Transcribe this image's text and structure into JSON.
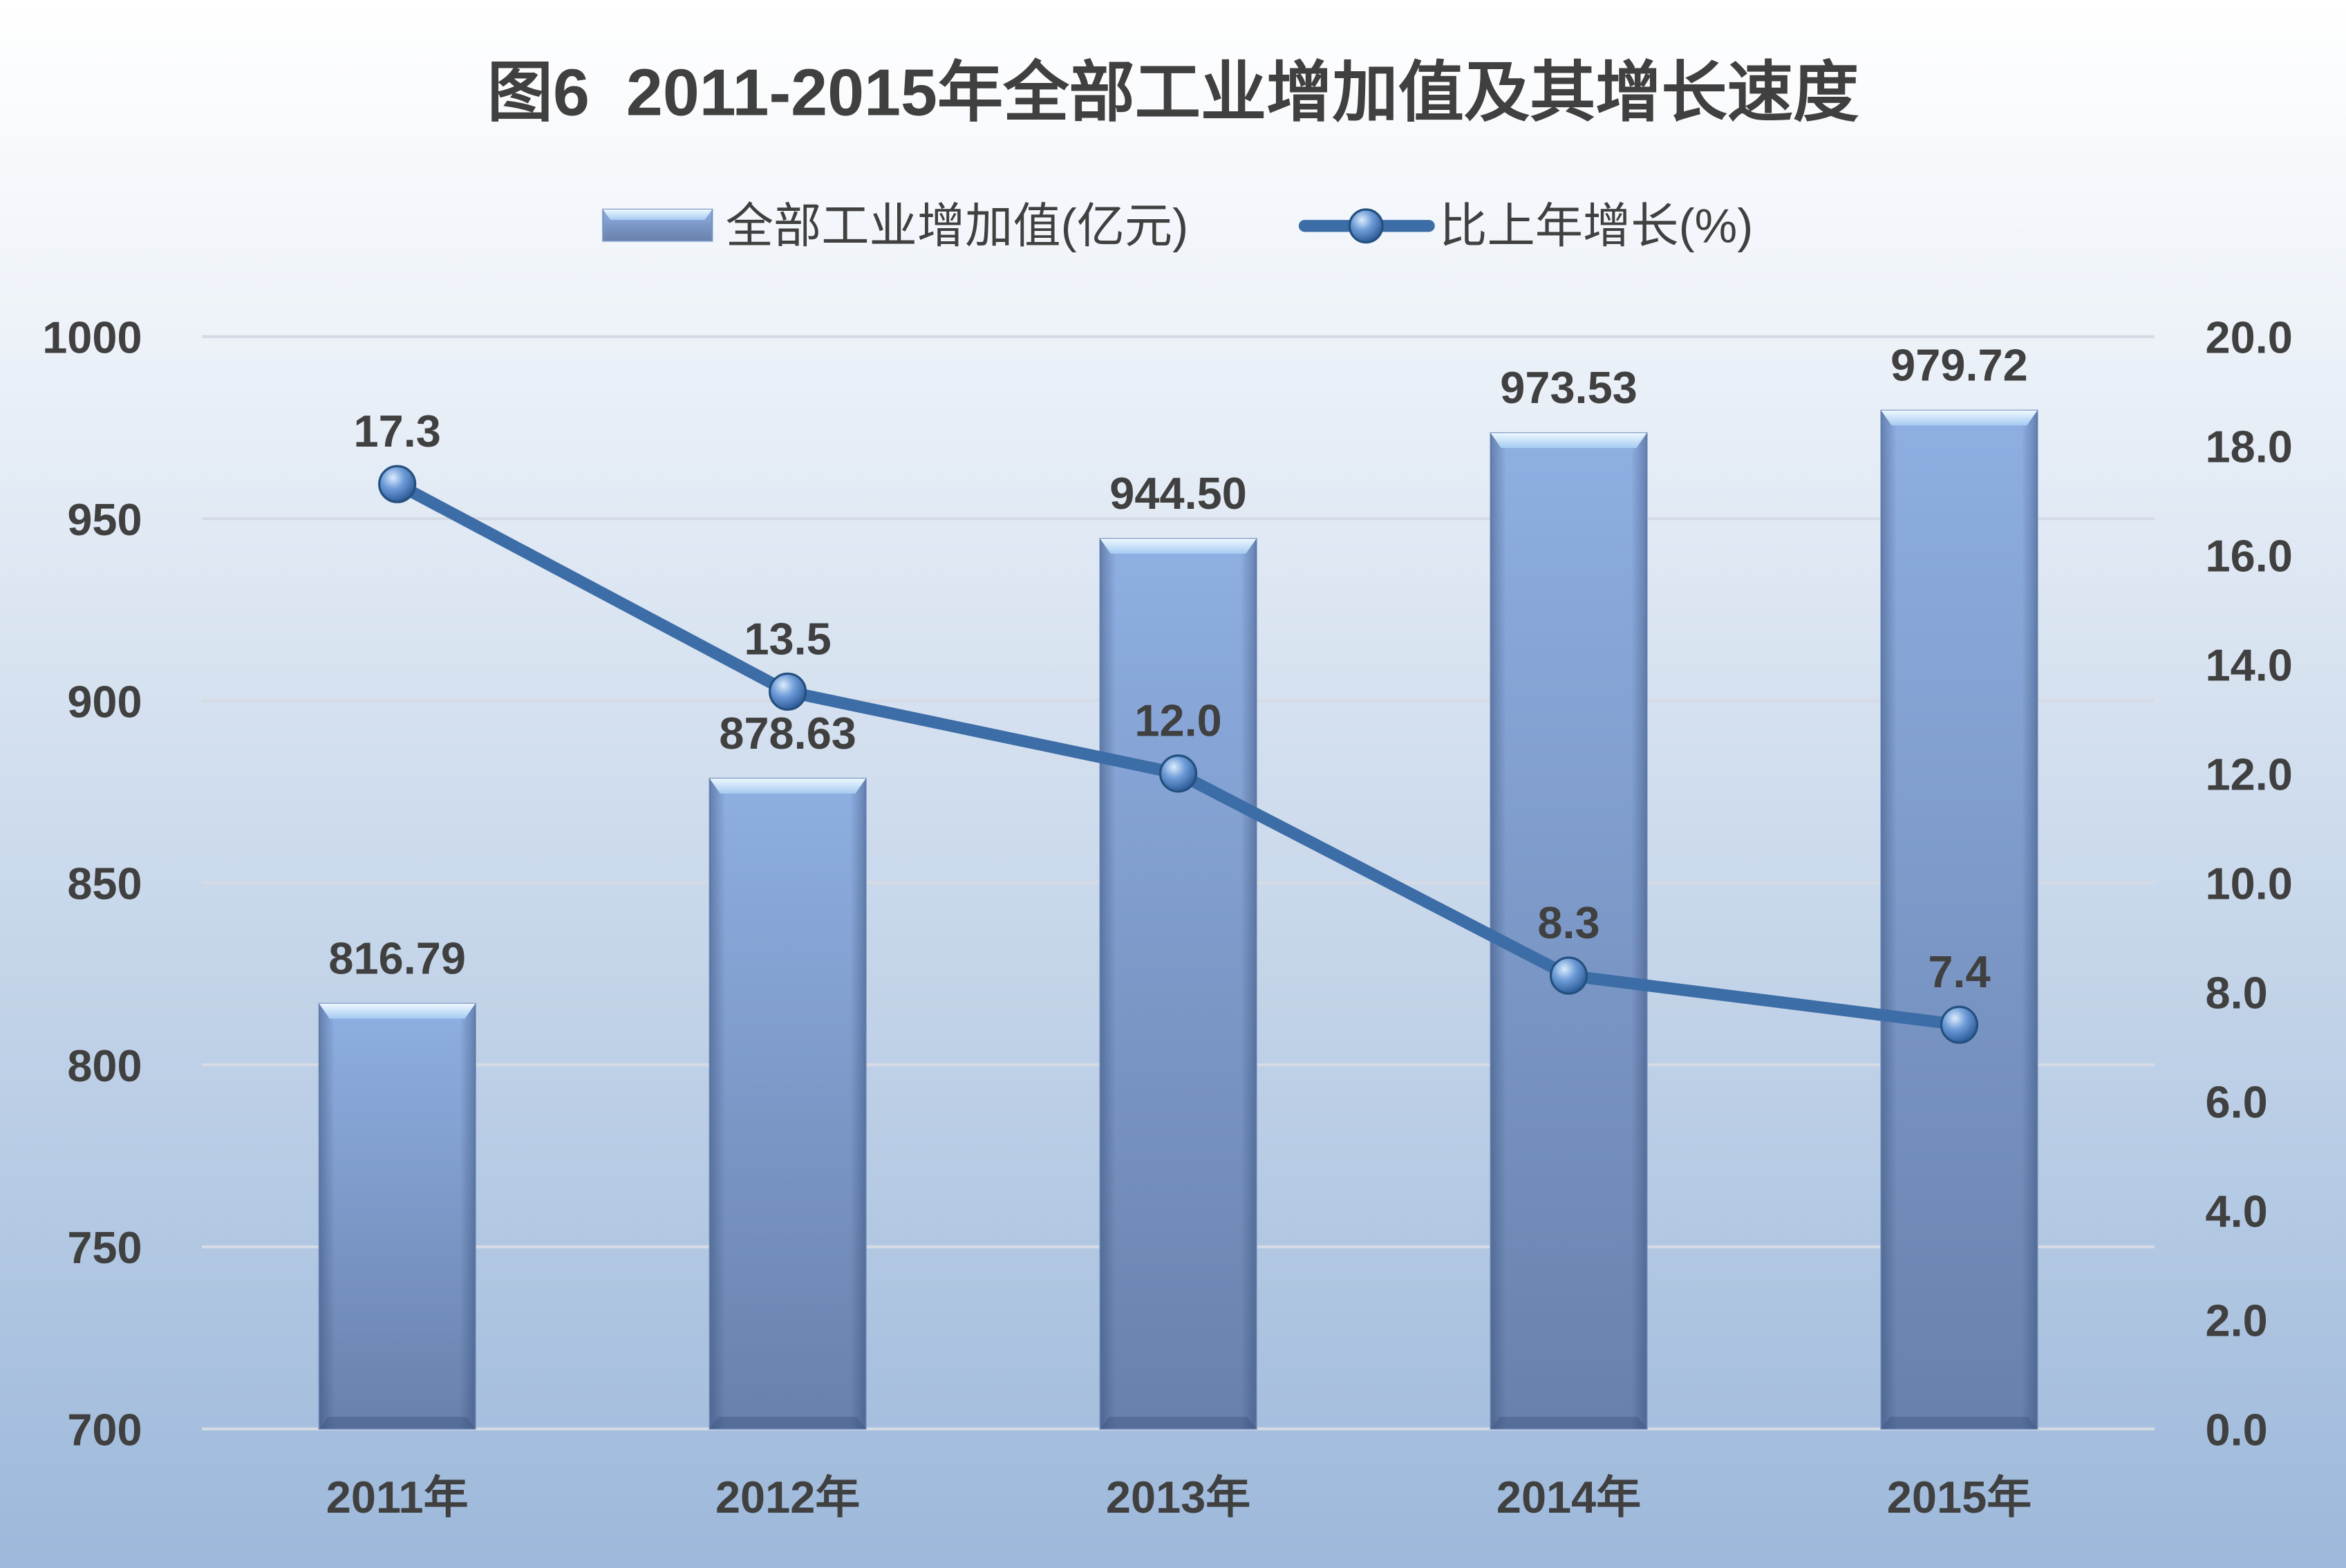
{
  "chart_data": {
    "type": "bar",
    "title": "图6  2011-2015年全部工业增加值及其增长速度",
    "categories": [
      "2011年",
      "2012年",
      "2013年",
      "2014年",
      "2015年"
    ],
    "series": [
      {
        "name": "全部工业增加值(亿元)",
        "type": "bar",
        "values": [
          816.79,
          878.63,
          944.5,
          973.53,
          979.72
        ],
        "labels": [
          "816.79",
          "878.63",
          "944.50",
          "973.53",
          "979.72"
        ],
        "color": "#8fafe2"
      },
      {
        "name": "比上年增长(%)",
        "type": "line",
        "values": [
          17.3,
          13.5,
          12.0,
          8.3,
          7.4
        ],
        "labels": [
          "17.3",
          "13.5",
          "12.0",
          "8.3",
          "7.4"
        ],
        "color": "#3d6da7"
      }
    ],
    "ylim": [
      700,
      1000
    ],
    "yticks": [
      "700",
      "750",
      "800",
      "850",
      "900",
      "950",
      "1000"
    ],
    "y2lim": [
      0,
      20
    ],
    "y2ticks": [
      "0.0",
      "2.0",
      "4.0",
      "6.0",
      "8.0",
      "10.0",
      "12.0",
      "14.0",
      "16.0",
      "18.0",
      "20.0"
    ],
    "grid": true,
    "legend": "top"
  }
}
